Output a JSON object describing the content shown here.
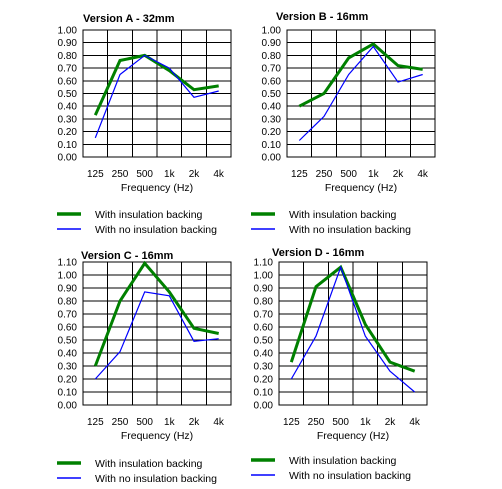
{
  "chart_data": [
    {
      "type": "line",
      "title": "Version A - 32mm",
      "xlabel": "Frequency (Hz)",
      "ylabel": "",
      "categories": [
        "125",
        "250",
        "500",
        "1k",
        "2k",
        "4k"
      ],
      "ylim": [
        0,
        1.0
      ],
      "ytick_step": 0.1,
      "yticks": [
        "0.00",
        "0.10",
        "0.20",
        "0.30",
        "0.40",
        "0.50",
        "0.60",
        "0.70",
        "0.80",
        "0.90",
        "1.00"
      ],
      "grid": true,
      "series": [
        {
          "name": "With insulation backing",
          "color": "#008000",
          "values": [
            0.33,
            0.76,
            0.8,
            0.68,
            0.53,
            0.56
          ]
        },
        {
          "name": "With no insulation backing",
          "color": "#0000ff",
          "values": [
            0.15,
            0.65,
            0.8,
            0.7,
            0.47,
            0.52
          ]
        }
      ]
    },
    {
      "type": "line",
      "title": "Version B - 16mm",
      "xlabel": "Frequency (Hz)",
      "ylabel": "",
      "categories": [
        "125",
        "250",
        "500",
        "1k",
        "2k",
        "4k"
      ],
      "ylim": [
        0,
        1.0
      ],
      "ytick_step": 0.1,
      "yticks": [
        "0.00",
        "0.10",
        "0.20",
        "0.30",
        "0.40",
        "0.50",
        "0.60",
        "0.70",
        "0.80",
        "0.90",
        "1.00"
      ],
      "grid": true,
      "series": [
        {
          "name": "With insulation backing",
          "color": "#008000",
          "values": [
            0.4,
            0.5,
            0.78,
            0.89,
            0.72,
            0.69
          ]
        },
        {
          "name": "With no insulation backing",
          "color": "#0000ff",
          "values": [
            0.13,
            0.32,
            0.65,
            0.87,
            0.59,
            0.65
          ]
        }
      ]
    },
    {
      "type": "line",
      "title": "Version C - 16mm",
      "xlabel": "Frequency (Hz)",
      "ylabel": "",
      "categories": [
        "125",
        "250",
        "500",
        "1k",
        "2k",
        "4k"
      ],
      "ylim": [
        0,
        1.1
      ],
      "ytick_step": 0.1,
      "yticks": [
        "0.00",
        "0.10",
        "0.20",
        "0.30",
        "0.40",
        "0.50",
        "0.60",
        "0.70",
        "0.80",
        "0.90",
        "1.00",
        "1.10"
      ],
      "grid": true,
      "series": [
        {
          "name": "With insulation backing",
          "color": "#008000",
          "values": [
            0.3,
            0.8,
            1.09,
            0.87,
            0.59,
            0.55
          ]
        },
        {
          "name": "With no insulation backing",
          "color": "#0000ff",
          "values": [
            0.2,
            0.41,
            0.87,
            0.84,
            0.49,
            0.51
          ]
        }
      ]
    },
    {
      "type": "line",
      "title": "Version D - 16mm",
      "xlabel": "Frequency (Hz)",
      "ylabel": "",
      "categories": [
        "125",
        "250",
        "500",
        "1k",
        "2k",
        "4k"
      ],
      "ylim": [
        0,
        1.1
      ],
      "ytick_step": 0.1,
      "yticks": [
        "0.00",
        "0.10",
        "0.20",
        "0.30",
        "0.40",
        "0.50",
        "0.60",
        "0.70",
        "0.80",
        "0.90",
        "1.00",
        "1.10"
      ],
      "grid": true,
      "series": [
        {
          "name": "With insulation backing",
          "color": "#008000",
          "values": [
            0.33,
            0.91,
            1.06,
            0.62,
            0.33,
            0.26
          ]
        },
        {
          "name": "With no insulation backing",
          "color": "#0000ff",
          "values": [
            0.2,
            0.53,
            1.06,
            0.53,
            0.26,
            0.1
          ]
        }
      ]
    }
  ]
}
